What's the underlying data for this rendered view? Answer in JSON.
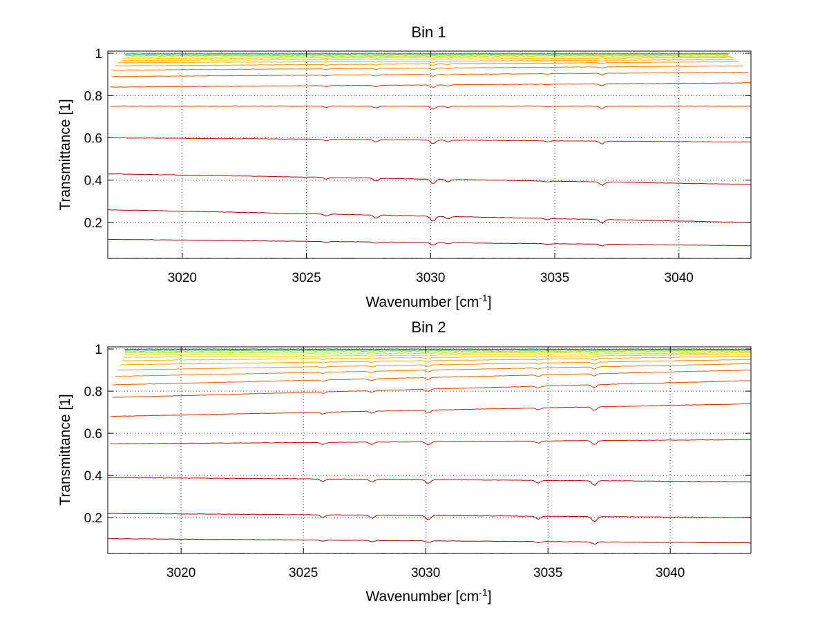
{
  "chart_data": [
    {
      "type": "line",
      "title": "Bin 1",
      "xlabel": "Wavenumber [cm-1]",
      "xlabel_base": "Wavenumber [cm",
      "xlabel_sup": "-1",
      "xlabel_end": "]",
      "ylabel": "Transmittance [1]",
      "xlim": [
        3017.0,
        3042.9
      ],
      "ylim": [
        0.03,
        1.01
      ],
      "xticks": [
        3020,
        3025,
        3030,
        3035,
        3040
      ],
      "yticks": [
        0.2,
        0.4,
        0.6,
        0.8,
        1
      ],
      "grid": true,
      "dips": [
        {
          "x": 3025.8,
          "depth": 0.4
        },
        {
          "x": 3027.8,
          "depth": 0.6
        },
        {
          "x": 3030.1,
          "depth": 1.0
        },
        {
          "x": 3030.7,
          "depth": 0.5
        },
        {
          "x": 3034.7,
          "depth": 0.25
        },
        {
          "x": 3036.9,
          "depth": 0.7
        }
      ],
      "series": [
        {
          "x_start": 3017.0,
          "x_end": 3042.9,
          "y_start": 0.03,
          "y_end": 0.03,
          "color": "#8b0000"
        },
        {
          "x_start": 3017.0,
          "x_end": 3042.9,
          "y_start": 0.12,
          "y_end": 0.09,
          "color": "#990000"
        },
        {
          "x_start": 3017.0,
          "x_end": 3042.9,
          "y_start": 0.26,
          "y_end": 0.2,
          "color": "#a50000"
        },
        {
          "x_start": 3017.0,
          "x_end": 3042.9,
          "y_start": 0.43,
          "y_end": 0.38,
          "color": "#b00000"
        },
        {
          "x_start": 3017.0,
          "x_end": 3042.9,
          "y_start": 0.6,
          "y_end": 0.58,
          "color": "#c01000"
        },
        {
          "x_start": 3017.1,
          "x_end": 3042.9,
          "y_start": 0.75,
          "y_end": 0.75,
          "color": "#cc2000"
        },
        {
          "x_start": 3017.1,
          "x_end": 3042.9,
          "y_start": 0.84,
          "y_end": 0.86,
          "color": "#d83a00"
        },
        {
          "x_start": 3017.2,
          "x_end": 3042.8,
          "y_start": 0.89,
          "y_end": 0.91,
          "color": "#e05a00"
        },
        {
          "x_start": 3017.2,
          "x_end": 3042.6,
          "y_start": 0.92,
          "y_end": 0.94,
          "color": "#e87800"
        },
        {
          "x_start": 3017.3,
          "x_end": 3042.4,
          "y_start": 0.94,
          "y_end": 0.96,
          "color": "#ee9200"
        },
        {
          "x_start": 3017.4,
          "x_end": 3042.3,
          "y_start": 0.955,
          "y_end": 0.97,
          "color": "#f0a800"
        },
        {
          "x_start": 3017.5,
          "x_end": 3042.2,
          "y_start": 0.965,
          "y_end": 0.98,
          "color": "#f2c000"
        },
        {
          "x_start": 3017.6,
          "x_end": 3042.1,
          "y_start": 0.975,
          "y_end": 0.985,
          "color": "#e8d200"
        },
        {
          "x_start": 3017.7,
          "x_end": 3042.0,
          "y_start": 0.982,
          "y_end": 0.99,
          "color": "#d4e000"
        },
        {
          "x_start": 3017.7,
          "x_end": 3042.0,
          "y_start": 0.988,
          "y_end": 0.994,
          "color": "#b0e020"
        },
        {
          "x_start": 3017.7,
          "x_end": 3042.0,
          "y_start": 0.992,
          "y_end": 0.996,
          "color": "#80d850"
        },
        {
          "x_start": 3017.7,
          "x_end": 3042.0,
          "y_start": 0.996,
          "y_end": 0.998,
          "color": "#40c8a0"
        },
        {
          "x_start": 3017.7,
          "x_end": 3042.0,
          "y_start": 0.999,
          "y_end": 0.999,
          "color": "#1ab0d8"
        }
      ]
    },
    {
      "type": "line",
      "title": "Bin 2",
      "xlabel": "Wavenumber [cm-1]",
      "xlabel_base": "Wavenumber [cm",
      "xlabel_sup": "-1",
      "xlabel_end": "]",
      "ylabel": "Transmittance [1]",
      "xlim": [
        3017.0,
        3043.3
      ],
      "ylim": [
        0.03,
        1.01
      ],
      "xticks": [
        3020,
        3025,
        3030,
        3035,
        3040
      ],
      "yticks": [
        0.2,
        0.4,
        0.6,
        0.8,
        1
      ],
      "grid": true,
      "dips": [
        {
          "x": 3025.8,
          "depth": 0.5
        },
        {
          "x": 3027.8,
          "depth": 0.6
        },
        {
          "x": 3030.1,
          "depth": 0.8
        },
        {
          "x": 3034.6,
          "depth": 0.55
        },
        {
          "x": 3036.9,
          "depth": 1.0
        }
      ],
      "series": [
        {
          "x_start": 3017.0,
          "x_end": 3043.3,
          "y_start": 0.03,
          "y_end": 0.03,
          "color": "#8b0000"
        },
        {
          "x_start": 3017.0,
          "x_end": 3043.3,
          "y_start": 0.1,
          "y_end": 0.08,
          "color": "#990000"
        },
        {
          "x_start": 3017.0,
          "x_end": 3043.3,
          "y_start": 0.22,
          "y_end": 0.2,
          "color": "#a50000"
        },
        {
          "x_start": 3017.0,
          "x_end": 3043.3,
          "y_start": 0.39,
          "y_end": 0.37,
          "color": "#b00000"
        },
        {
          "x_start": 3017.1,
          "x_end": 3043.3,
          "y_start": 0.55,
          "y_end": 0.57,
          "color": "#c01000"
        },
        {
          "x_start": 3017.1,
          "x_end": 3043.3,
          "y_start": 0.68,
          "y_end": 0.74,
          "color": "#cc2000"
        },
        {
          "x_start": 3017.2,
          "x_end": 3043.3,
          "y_start": 0.77,
          "y_end": 0.85,
          "color": "#d83a00"
        },
        {
          "x_start": 3017.2,
          "x_end": 3043.3,
          "y_start": 0.83,
          "y_end": 0.9,
          "color": "#e05a00"
        },
        {
          "x_start": 3017.3,
          "x_end": 3043.3,
          "y_start": 0.87,
          "y_end": 0.93,
          "color": "#e87800"
        },
        {
          "x_start": 3017.4,
          "x_end": 3043.3,
          "y_start": 0.9,
          "y_end": 0.95,
          "color": "#ee9200"
        },
        {
          "x_start": 3017.5,
          "x_end": 3043.3,
          "y_start": 0.925,
          "y_end": 0.965,
          "color": "#f0a800"
        },
        {
          "x_start": 3017.6,
          "x_end": 3043.3,
          "y_start": 0.945,
          "y_end": 0.975,
          "color": "#f2c000"
        },
        {
          "x_start": 3017.6,
          "x_end": 3043.3,
          "y_start": 0.96,
          "y_end": 0.982,
          "color": "#e8d200"
        },
        {
          "x_start": 3017.7,
          "x_end": 3043.3,
          "y_start": 0.972,
          "y_end": 0.988,
          "color": "#d4e000"
        },
        {
          "x_start": 3017.7,
          "x_end": 3043.3,
          "y_start": 0.982,
          "y_end": 0.992,
          "color": "#b0e020"
        },
        {
          "x_start": 3017.7,
          "x_end": 3043.3,
          "y_start": 0.99,
          "y_end": 0.995,
          "color": "#80d850"
        },
        {
          "x_start": 3017.7,
          "x_end": 3043.3,
          "y_start": 0.995,
          "y_end": 0.998,
          "color": "#40c8a0"
        },
        {
          "x_start": 3017.7,
          "x_end": 3043.3,
          "y_start": 0.999,
          "y_end": 0.999,
          "color": "#1060b0"
        }
      ]
    }
  ]
}
